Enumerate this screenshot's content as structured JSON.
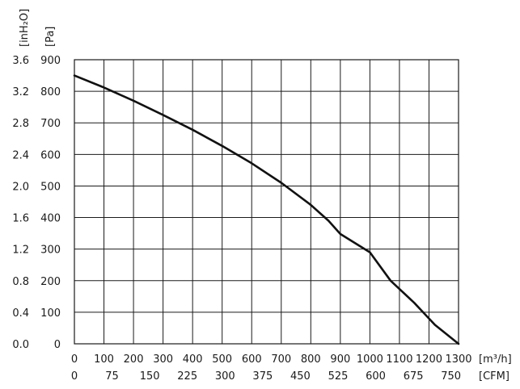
{
  "chart_data": {
    "type": "line",
    "x_primary": {
      "unit_label": "[m³/h]",
      "ticks": [
        "0",
        "100",
        "200",
        "300",
        "400",
        "500",
        "600",
        "700",
        "800",
        "900",
        "1000",
        "1100",
        "1200",
        "1300"
      ],
      "range": [
        0,
        1300
      ]
    },
    "x_secondary": {
      "unit_label": "[CFM]",
      "ticks": [
        "0",
        "75",
        "150",
        "225",
        "300",
        "375",
        "450",
        "525",
        "600",
        "675",
        "750"
      ]
    },
    "y_primary": {
      "unit_label": "[Pa]",
      "ticks": [
        "0",
        "100",
        "200",
        "300",
        "400",
        "500",
        "600",
        "700",
        "800",
        "900"
      ],
      "range": [
        0,
        900
      ]
    },
    "y_secondary": {
      "unit_label": "[inH₂O]",
      "ticks": [
        "0.0",
        "0.4",
        "0.8",
        "1.2",
        "1.6",
        "2.0",
        "2.4",
        "2.8",
        "3.2",
        "3.6"
      ]
    },
    "grid": true,
    "series": [
      {
        "x": [
          0,
          100,
          200,
          300,
          400,
          500,
          600,
          700,
          800,
          860,
          900,
          1000,
          1070,
          1150,
          1220,
          1300
        ],
        "y": [
          850,
          812,
          770,
          725,
          678,
          627,
          572,
          510,
          440,
          390,
          348,
          290,
          200,
          130,
          60,
          0
        ]
      }
    ],
    "colors": {
      "line": "#111111",
      "grid": "#1a1a1a"
    }
  }
}
